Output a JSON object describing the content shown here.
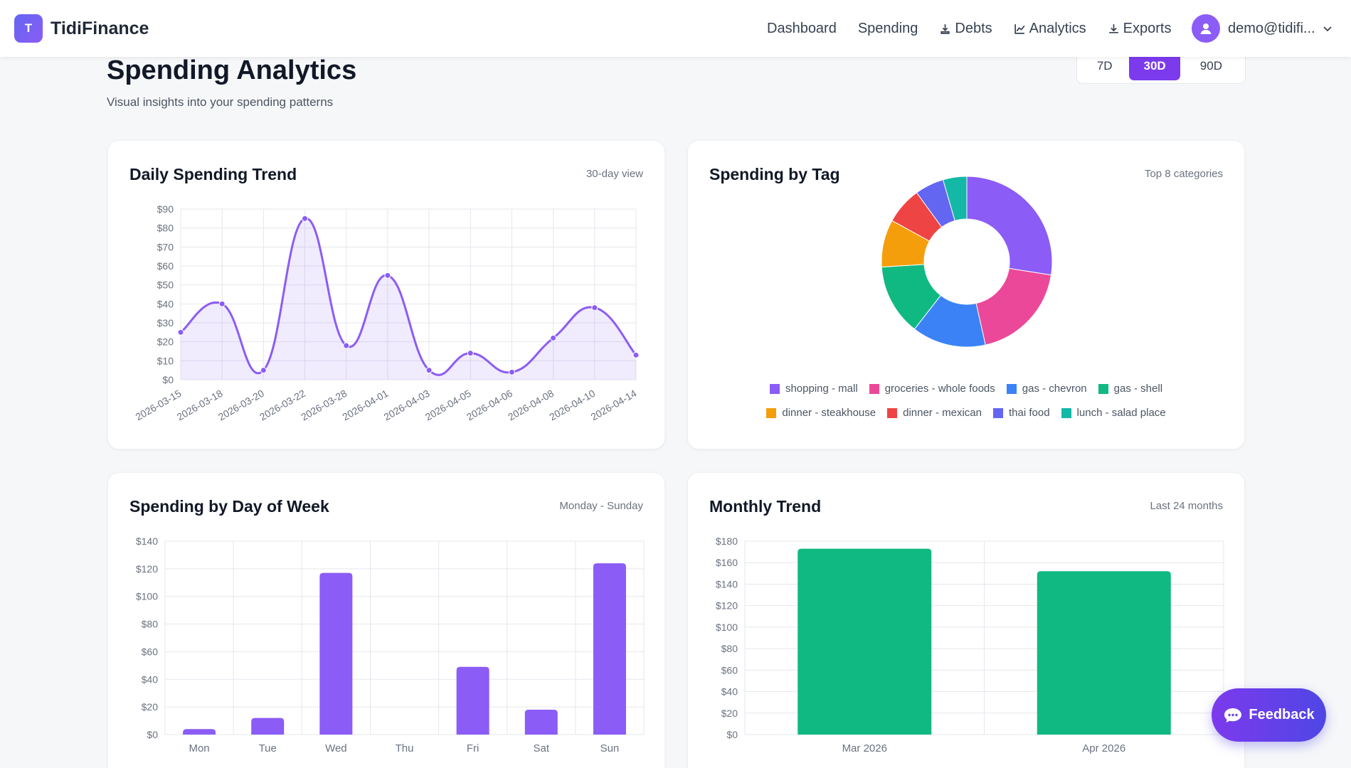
{
  "brand": {
    "logo_letter": "T",
    "name": "TidiFinance"
  },
  "nav": {
    "links": [
      {
        "label": "Dashboard",
        "icon": ""
      },
      {
        "label": "Spending",
        "icon": ""
      },
      {
        "label": "Debts",
        "icon": "debts-icon"
      },
      {
        "label": "Analytics",
        "icon": "chart-line-icon"
      },
      {
        "label": "Exports",
        "icon": "download-icon"
      }
    ],
    "user_email": "demo@tidifi..."
  },
  "header": {
    "title": "Spending Analytics",
    "subtitle": "Visual insights into your spending patterns",
    "ranges": [
      {
        "label": "7D"
      },
      {
        "label": "30D"
      },
      {
        "label": "90D"
      }
    ],
    "active_range": "30D"
  },
  "cards": {
    "daily": {
      "title": "Daily Spending Trend",
      "subtitle": "30-day view"
    },
    "tag": {
      "title": "Spending by Tag",
      "subtitle": "Top 8 categories"
    },
    "dow": {
      "title": "Spending by Day of Week",
      "subtitle": "Monday - Sunday"
    },
    "monthly": {
      "title": "Monthly Trend",
      "subtitle": "Last 24 months"
    }
  },
  "feedback_label": "Feedback",
  "colors": {
    "accent": "#7c3aed",
    "line": "#8b5cf6",
    "green": "#10b981"
  },
  "chart_data": [
    {
      "id": "daily",
      "type": "line",
      "x": [
        "2026-03-15",
        "2026-03-18",
        "2026-03-20",
        "2026-03-22",
        "2026-03-28",
        "2026-04-01",
        "2026-04-03",
        "2026-04-05",
        "2026-04-06",
        "2026-04-08",
        "2026-04-10",
        "2026-04-14"
      ],
      "series": [
        {
          "values": [
            25,
            40,
            5,
            85,
            18,
            55,
            5,
            14,
            4,
            22,
            38,
            13
          ]
        }
      ],
      "yticks": [
        "$0",
        "$10",
        "$20",
        "$30",
        "$40",
        "$50",
        "$60",
        "$70",
        "$80",
        "$90"
      ],
      "ylim": [
        0,
        90
      ],
      "grid": true
    },
    {
      "id": "tag",
      "type": "pie",
      "labels": [
        "shopping - mall",
        "groceries - whole foods",
        "gas - chevron",
        "gas - shell",
        "dinner - steakhouse",
        "dinner - mexican",
        "thai food",
        "lunch - salad place"
      ],
      "values": [
        55,
        38,
        28,
        27,
        18,
        14,
        11,
        9
      ],
      "colors": [
        "#8b5cf6",
        "#ec4899",
        "#3b82f6",
        "#10b981",
        "#f59e0b",
        "#ef4444",
        "#6366f1",
        "#14b8a6"
      ],
      "legend": "bottom"
    },
    {
      "id": "dow",
      "type": "bar",
      "categories": [
        "Mon",
        "Tue",
        "Wed",
        "Thu",
        "Fri",
        "Sat",
        "Sun"
      ],
      "values": [
        4,
        12,
        117,
        0,
        49,
        18,
        124
      ],
      "yticks": [
        "$0",
        "$20",
        "$40",
        "$60",
        "$80",
        "$100",
        "$120",
        "$140"
      ],
      "ylim": [
        0,
        140
      ],
      "color": "#8b5cf6"
    },
    {
      "id": "monthly",
      "type": "bar",
      "categories": [
        "Mar 2026",
        "Apr 2026"
      ],
      "values": [
        173,
        152
      ],
      "yticks": [
        "$0",
        "$20",
        "$40",
        "$60",
        "$80",
        "$100",
        "$120",
        "$140",
        "$160",
        "$180"
      ],
      "ylim": [
        0,
        180
      ],
      "color": "#10b981"
    }
  ]
}
